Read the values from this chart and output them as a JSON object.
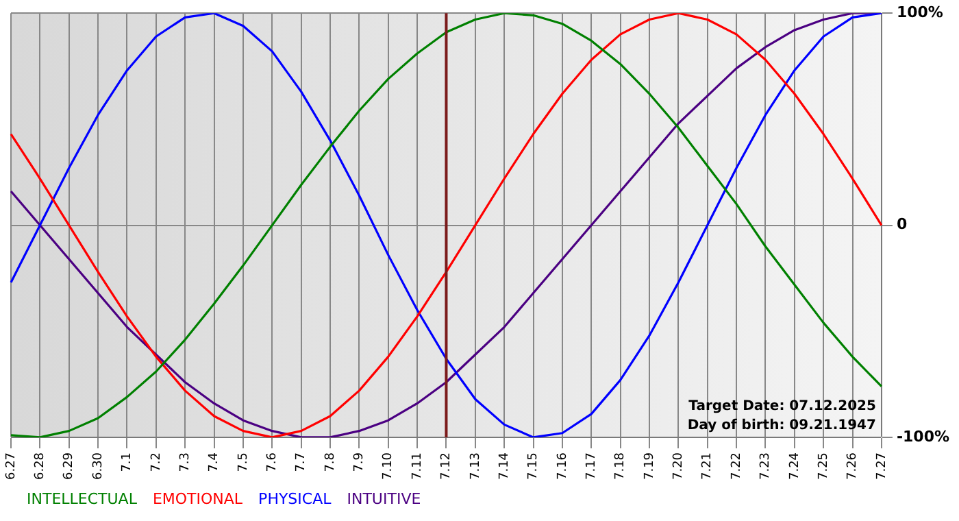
{
  "chart_data": {
    "type": "line",
    "categories": [
      "6.27",
      "6.28",
      "6.29",
      "6.30",
      "7.1",
      "7.2",
      "7.3",
      "7.4",
      "7.5",
      "7.6",
      "7.7",
      "7.8",
      "7.9",
      "7.10",
      "7.11",
      "7.12",
      "7.13",
      "7.14",
      "7.15",
      "7.16",
      "7.17",
      "7.18",
      "7.19",
      "7.20",
      "7.21",
      "7.22",
      "7.23",
      "7.24",
      "7.25",
      "7.26",
      "7.27"
    ],
    "series": [
      {
        "name": "INTELLECTUAL",
        "color": "#008000",
        "values": [
          -99,
          -100,
          -97,
          -91,
          -81,
          -69,
          -54,
          -37,
          -19,
          0,
          19,
          37,
          54,
          69,
          81,
          91,
          97,
          100,
          99,
          95,
          87,
          76,
          62,
          46,
          28,
          10,
          -10,
          -28,
          -46,
          -62,
          -76
        ]
      },
      {
        "name": "EMOTIONAL",
        "color": "#ff0000",
        "values": [
          43,
          22,
          0,
          -22,
          -43,
          -62,
          -78,
          -90,
          -97,
          -100,
          -97,
          -90,
          -78,
          -62,
          -43,
          -22,
          0,
          22,
          43,
          62,
          78,
          90,
          97,
          100,
          97,
          90,
          78,
          62,
          43,
          22,
          0
        ]
      },
      {
        "name": "PHYSICAL",
        "color": "#0000ff",
        "values": [
          -27,
          0,
          27,
          52,
          73,
          89,
          98,
          100,
          94,
          82,
          63,
          40,
          14,
          -14,
          -40,
          -63,
          -82,
          -94,
          -100,
          -98,
          -89,
          -73,
          -52,
          -27,
          0,
          27,
          52,
          73,
          89,
          98,
          100
        ]
      },
      {
        "name": "INTUITIVE",
        "color": "#4b0082",
        "values": [
          16,
          0,
          -16,
          -32,
          -48,
          -61,
          -74,
          -84,
          -92,
          -97,
          -100,
          -100,
          -97,
          -92,
          -84,
          -74,
          -61,
          -48,
          -32,
          -16,
          0,
          16,
          32,
          48,
          61,
          74,
          84,
          92,
          97,
          100,
          100
        ]
      }
    ],
    "ylim": [
      -100,
      100
    ],
    "yticks": [
      {
        "value": -100,
        "label": "-100%"
      },
      0,
      {
        "value": 100,
        "label": "100%"
      }
    ],
    "grid": true,
    "legend": "bottom left",
    "marker": "none",
    "line_style": "solid",
    "ref_lines": [
      {
        "axis": "x",
        "value": "7.12",
        "color": "#7a1a1a"
      }
    ],
    "annotations": [
      "Target Date: 07.12.2025",
      "Day of birth: 09.21.1947"
    ]
  }
}
